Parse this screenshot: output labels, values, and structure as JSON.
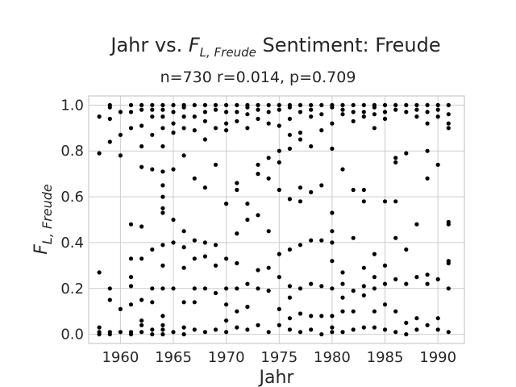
{
  "chart_data": {
    "type": "scatter",
    "title_prefix": "Jahr vs. ",
    "title_symbol": "F",
    "title_symbol_sub": "L, Freude",
    "title_suffix": " Sentiment: Freude",
    "subtitle": "n=730 r=0.014, p=0.709",
    "xlabel": "Jahr",
    "ylabel_symbol": "F",
    "ylabel_sub": "L, Freude",
    "xlim": [
      1957,
      1992.5
    ],
    "ylim": [
      -0.04,
      1.04
    ],
    "xticks": [
      1960,
      1965,
      1970,
      1975,
      1980,
      1985,
      1990
    ],
    "yticks": [
      0.0,
      0.2,
      0.4,
      0.6,
      0.8,
      1.0
    ],
    "ytick_labels": [
      "0.0",
      "0.2",
      "0.4",
      "0.6",
      "0.8",
      "1.0"
    ],
    "grid": true,
    "marker_color": "#000000",
    "points": [
      [
        1958,
        0.95
      ],
      [
        1958,
        0.79
      ],
      [
        1958,
        0.27
      ],
      [
        1958,
        0.03
      ],
      [
        1958,
        0.01
      ],
      [
        1958,
        0.0
      ],
      [
        1959,
        1.0
      ],
      [
        1959,
        0.99
      ],
      [
        1959,
        0.94
      ],
      [
        1959,
        0.84
      ],
      [
        1959,
        0.2
      ],
      [
        1959,
        0.15
      ],
      [
        1959,
        0.01
      ],
      [
        1959,
        0.0
      ],
      [
        1960,
        0.97
      ],
      [
        1960,
        0.87
      ],
      [
        1960,
        0.78
      ],
      [
        1960,
        0.11
      ],
      [
        1960,
        0.01
      ],
      [
        1961,
        1.0
      ],
      [
        1961,
        0.97
      ],
      [
        1961,
        0.9
      ],
      [
        1961,
        0.48
      ],
      [
        1961,
        0.33
      ],
      [
        1961,
        0.25
      ],
      [
        1961,
        0.21
      ],
      [
        1961,
        0.13
      ],
      [
        1961,
        0.01
      ],
      [
        1961,
        0.0
      ],
      [
        1962,
        1.0
      ],
      [
        1962,
        0.98
      ],
      [
        1962,
        0.91
      ],
      [
        1962,
        0.82
      ],
      [
        1962,
        0.73
      ],
      [
        1962,
        0.47
      ],
      [
        1962,
        0.33
      ],
      [
        1962,
        0.15
      ],
      [
        1962,
        0.06
      ],
      [
        1962,
        0.04
      ],
      [
        1962,
        0.01
      ],
      [
        1963,
        1.0
      ],
      [
        1963,
        0.98
      ],
      [
        1963,
        0.95
      ],
      [
        1963,
        0.87
      ],
      [
        1963,
        0.72
      ],
      [
        1963,
        0.37
      ],
      [
        1963,
        0.2
      ],
      [
        1963,
        0.14
      ],
      [
        1963,
        0.02
      ],
      [
        1963,
        0.0
      ],
      [
        1964,
        1.0
      ],
      [
        1964,
        0.98
      ],
      [
        1964,
        0.95
      ],
      [
        1964,
        0.9
      ],
      [
        1964,
        0.82
      ],
      [
        1964,
        0.71
      ],
      [
        1964,
        0.65
      ],
      [
        1964,
        0.6
      ],
      [
        1964,
        0.55
      ],
      [
        1964,
        0.53
      ],
      [
        1964,
        0.39
      ],
      [
        1964,
        0.3
      ],
      [
        1964,
        0.2
      ],
      [
        1964,
        0.08
      ],
      [
        1964,
        0.04
      ],
      [
        1964,
        0.02
      ],
      [
        1964,
        0.0
      ],
      [
        1965,
        1.0
      ],
      [
        1965,
        0.97
      ],
      [
        1965,
        0.92
      ],
      [
        1965,
        0.88
      ],
      [
        1965,
        0.72
      ],
      [
        1965,
        0.5
      ],
      [
        1965,
        0.4
      ],
      [
        1965,
        0.2
      ],
      [
        1965,
        0.01
      ],
      [
        1966,
        1.0
      ],
      [
        1966,
        0.99
      ],
      [
        1966,
        0.95
      ],
      [
        1966,
        0.9
      ],
      [
        1966,
        0.78
      ],
      [
        1966,
        0.45
      ],
      [
        1966,
        0.38
      ],
      [
        1966,
        0.29
      ],
      [
        1966,
        0.14
      ],
      [
        1966,
        0.03
      ],
      [
        1966,
        0.0
      ],
      [
        1967,
        1.0
      ],
      [
        1967,
        0.95
      ],
      [
        1967,
        0.89
      ],
      [
        1967,
        0.68
      ],
      [
        1967,
        0.41
      ],
      [
        1967,
        0.33
      ],
      [
        1967,
        0.2
      ],
      [
        1967,
        0.14
      ],
      [
        1967,
        0.02
      ],
      [
        1968,
        1.0
      ],
      [
        1968,
        0.97
      ],
      [
        1968,
        0.93
      ],
      [
        1968,
        0.85
      ],
      [
        1968,
        0.64
      ],
      [
        1968,
        0.4
      ],
      [
        1968,
        0.34
      ],
      [
        1968,
        0.2
      ],
      [
        1968,
        0.01
      ],
      [
        1969,
        1.0
      ],
      [
        1969,
        0.98
      ],
      [
        1969,
        0.9
      ],
      [
        1969,
        0.74
      ],
      [
        1969,
        0.39
      ],
      [
        1969,
        0.3
      ],
      [
        1969,
        0.18
      ],
      [
        1969,
        0.02
      ],
      [
        1970,
        1.0
      ],
      [
        1970,
        0.97
      ],
      [
        1970,
        0.92
      ],
      [
        1970,
        0.89
      ],
      [
        1970,
        0.57
      ],
      [
        1970,
        0.33
      ],
      [
        1970,
        0.2
      ],
      [
        1970,
        0.13
      ],
      [
        1970,
        0.06
      ],
      [
        1970,
        0.01
      ],
      [
        1971,
        1.0
      ],
      [
        1971,
        0.97
      ],
      [
        1971,
        0.93
      ],
      [
        1971,
        0.66
      ],
      [
        1971,
        0.63
      ],
      [
        1971,
        0.44
      ],
      [
        1971,
        0.31
      ],
      [
        1971,
        0.2
      ],
      [
        1971,
        0.1
      ],
      [
        1971,
        0.03
      ],
      [
        1972,
        1.0
      ],
      [
        1972,
        0.99
      ],
      [
        1972,
        0.96
      ],
      [
        1972,
        0.9
      ],
      [
        1972,
        0.57
      ],
      [
        1972,
        0.5
      ],
      [
        1972,
        0.22
      ],
      [
        1972,
        0.12
      ],
      [
        1972,
        0.02
      ],
      [
        1973,
        1.0
      ],
      [
        1973,
        0.98
      ],
      [
        1973,
        0.94
      ],
      [
        1973,
        0.74
      ],
      [
        1973,
        0.7
      ],
      [
        1973,
        0.52
      ],
      [
        1973,
        0.28
      ],
      [
        1973,
        0.2
      ],
      [
        1973,
        0.04
      ],
      [
        1974,
        1.0
      ],
      [
        1974,
        0.97
      ],
      [
        1974,
        0.92
      ],
      [
        1974,
        0.77
      ],
      [
        1974,
        0.68
      ],
      [
        1974,
        0.45
      ],
      [
        1974,
        0.29
      ],
      [
        1974,
        0.19
      ],
      [
        1974,
        0.01
      ],
      [
        1975,
        1.0
      ],
      [
        1975,
        0.98
      ],
      [
        1975,
        0.91
      ],
      [
        1975,
        0.8
      ],
      [
        1975,
        0.75
      ],
      [
        1975,
        0.63
      ],
      [
        1975,
        0.35
      ],
      [
        1975,
        0.25
      ],
      [
        1975,
        0.11
      ],
      [
        1975,
        0.04
      ],
      [
        1976,
        1.0
      ],
      [
        1976,
        0.99
      ],
      [
        1976,
        0.94
      ],
      [
        1976,
        0.87
      ],
      [
        1976,
        0.81
      ],
      [
        1976,
        0.59
      ],
      [
        1976,
        0.37
      ],
      [
        1976,
        0.21
      ],
      [
        1976,
        0.16
      ],
      [
        1976,
        0.07
      ],
      [
        1976,
        0.02
      ],
      [
        1977,
        1.0
      ],
      [
        1977,
        0.97
      ],
      [
        1977,
        0.88
      ],
      [
        1977,
        0.85
      ],
      [
        1977,
        0.64
      ],
      [
        1977,
        0.58
      ],
      [
        1977,
        0.39
      ],
      [
        1977,
        0.2
      ],
      [
        1977,
        0.09
      ],
      [
        1977,
        0.01
      ],
      [
        1978,
        1.0
      ],
      [
        1978,
        0.98
      ],
      [
        1978,
        0.95
      ],
      [
        1978,
        0.82
      ],
      [
        1978,
        0.62
      ],
      [
        1978,
        0.41
      ],
      [
        1978,
        0.22
      ],
      [
        1978,
        0.08
      ],
      [
        1978,
        0.02
      ],
      [
        1979,
        1.0
      ],
      [
        1979,
        0.96
      ],
      [
        1979,
        0.89
      ],
      [
        1979,
        0.65
      ],
      [
        1979,
        0.41
      ],
      [
        1979,
        0.21
      ],
      [
        1979,
        0.08
      ],
      [
        1979,
        0.0
      ],
      [
        1980,
        1.0
      ],
      [
        1980,
        0.99
      ],
      [
        1980,
        0.92
      ],
      [
        1980,
        0.81
      ],
      [
        1980,
        0.53
      ],
      [
        1980,
        0.45
      ],
      [
        1980,
        0.4
      ],
      [
        1980,
        0.32
      ],
      [
        1980,
        0.2
      ],
      [
        1980,
        0.08
      ],
      [
        1980,
        0.03
      ],
      [
        1980,
        0.01
      ],
      [
        1981,
        1.0
      ],
      [
        1981,
        0.98
      ],
      [
        1981,
        0.96
      ],
      [
        1981,
        0.72
      ],
      [
        1981,
        0.27
      ],
      [
        1981,
        0.22
      ],
      [
        1981,
        0.16
      ],
      [
        1981,
        0.1
      ],
      [
        1981,
        0.01
      ],
      [
        1982,
        1.0
      ],
      [
        1982,
        0.97
      ],
      [
        1982,
        0.93
      ],
      [
        1982,
        0.63
      ],
      [
        1982,
        0.42
      ],
      [
        1982,
        0.19
      ],
      [
        1982,
        0.1
      ],
      [
        1982,
        0.02
      ],
      [
        1983,
        1.0
      ],
      [
        1983,
        0.97
      ],
      [
        1983,
        0.95
      ],
      [
        1983,
        0.63
      ],
      [
        1983,
        0.58
      ],
      [
        1983,
        0.29
      ],
      [
        1983,
        0.21
      ],
      [
        1983,
        0.17
      ],
      [
        1983,
        0.03
      ],
      [
        1984,
        1.0
      ],
      [
        1984,
        0.99
      ],
      [
        1984,
        0.96
      ],
      [
        1984,
        0.9
      ],
      [
        1984,
        0.35
      ],
      [
        1984,
        0.25
      ],
      [
        1984,
        0.2
      ],
      [
        1984,
        0.1
      ],
      [
        1984,
        0.03
      ],
      [
        1985,
        1.0
      ],
      [
        1985,
        0.97
      ],
      [
        1985,
        0.94
      ],
      [
        1985,
        0.58
      ],
      [
        1985,
        0.3
      ],
      [
        1985,
        0.22
      ],
      [
        1985,
        0.13
      ],
      [
        1985,
        0.02
      ],
      [
        1986,
        1.0
      ],
      [
        1986,
        0.98
      ],
      [
        1986,
        0.77
      ],
      [
        1986,
        0.75
      ],
      [
        1986,
        0.58
      ],
      [
        1986,
        0.42
      ],
      [
        1986,
        0.24
      ],
      [
        1986,
        0.1
      ],
      [
        1986,
        0.01
      ],
      [
        1987,
        1.0
      ],
      [
        1987,
        0.97
      ],
      [
        1987,
        0.79
      ],
      [
        1987,
        0.37
      ],
      [
        1987,
        0.22
      ],
      [
        1987,
        0.05
      ],
      [
        1987,
        0.0
      ],
      [
        1988,
        1.0
      ],
      [
        1988,
        0.98
      ],
      [
        1988,
        0.95
      ],
      [
        1988,
        0.48
      ],
      [
        1988,
        0.25
      ],
      [
        1988,
        0.07
      ],
      [
        1988,
        0.02
      ],
      [
        1989,
        1.0
      ],
      [
        1989,
        0.97
      ],
      [
        1989,
        0.92
      ],
      [
        1989,
        0.8
      ],
      [
        1989,
        0.68
      ],
      [
        1989,
        0.26
      ],
      [
        1989,
        0.22
      ],
      [
        1989,
        0.04
      ],
      [
        1990,
        1.0
      ],
      [
        1990,
        0.98
      ],
      [
        1990,
        0.95
      ],
      [
        1990,
        0.74
      ],
      [
        1990,
        0.24
      ],
      [
        1990,
        0.07
      ],
      [
        1990,
        0.02
      ],
      [
        1991,
        1.0
      ],
      [
        1991,
        0.96
      ],
      [
        1991,
        0.92
      ],
      [
        1991,
        0.9
      ],
      [
        1991,
        0.49
      ],
      [
        1991,
        0.48
      ],
      [
        1991,
        0.32
      ],
      [
        1991,
        0.31
      ],
      [
        1991,
        0.2
      ],
      [
        1991,
        0.01
      ]
    ]
  }
}
